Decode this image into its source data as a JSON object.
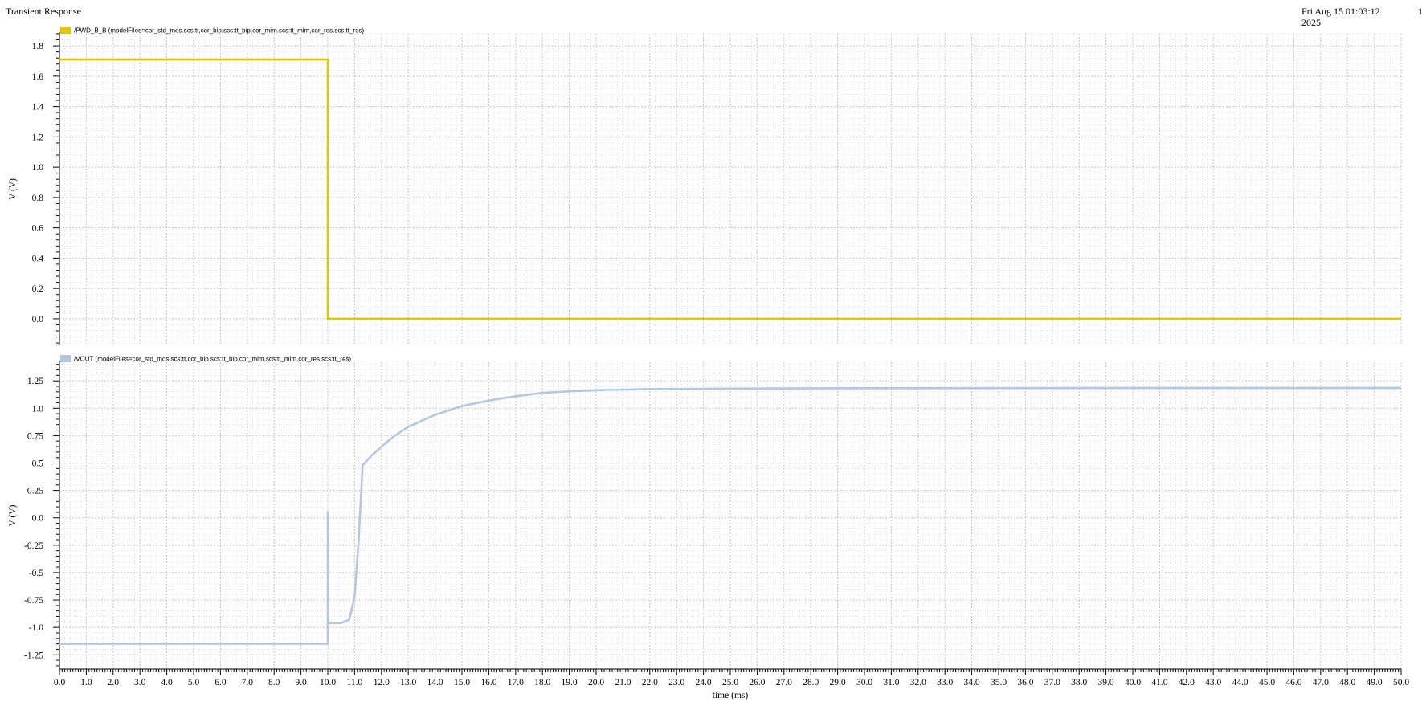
{
  "header": {
    "title": "Transient Response",
    "date_line1": "Fri Aug 15 01:03:12",
    "date_line2": "2025",
    "page": "1"
  },
  "chart_data": [
    {
      "type": "line",
      "legend": "/PWD_B_B (modelFiles=cor_std_mos.scs:tt,cor_bip.scs:tt_bip,cor_mim.scs:tt_mim,cor_res.scs:tt_res)",
      "ylabel": "V (V)",
      "ylim": [
        -0.17,
        1.88
      ],
      "yticks": [
        "0.0",
        "0.2",
        "0.4",
        "0.6",
        "0.8",
        "1.0",
        "1.2",
        "1.4",
        "1.6",
        "1.8"
      ],
      "color": "#dcc800",
      "series": [
        {
          "points": [
            [
              0,
              1.71
            ],
            [
              10,
              1.71
            ],
            [
              10,
              0.0
            ],
            [
              50,
              0.0
            ]
          ]
        }
      ]
    },
    {
      "type": "line",
      "legend": "/VOUT (modelFiles=cor_std_mos.scs:tt,cor_bip.scs:tt_bip,cor_mim.scs:tt_mim,cor_res.scs:tt_res)",
      "ylabel": "V (V)",
      "ylim": [
        -1.38,
        1.42
      ],
      "yticks": [
        "-1.25",
        "-1.0",
        "-0.75",
        "-0.5",
        "-0.25",
        "0.0",
        "0.25",
        "0.5",
        "0.75",
        "1.0",
        "1.25"
      ],
      "color": "#b4c6e0",
      "series": [
        {
          "points": [
            [
              0,
              -1.15
            ],
            [
              10,
              -1.15
            ],
            [
              10,
              0.05
            ],
            [
              10.02,
              -0.96
            ],
            [
              10.5,
              -0.96
            ],
            [
              10.8,
              -0.93
            ],
            [
              11.0,
              -0.72
            ],
            [
              11.15,
              -0.2
            ],
            [
              11.3,
              0.48
            ],
            [
              11.6,
              0.56
            ],
            [
              12.0,
              0.65
            ],
            [
              12.5,
              0.75
            ],
            [
              13,
              0.83
            ],
            [
              14,
              0.94
            ],
            [
              15,
              1.02
            ],
            [
              16,
              1.07
            ],
            [
              17,
              1.11
            ],
            [
              18,
              1.14
            ],
            [
              19,
              1.155
            ],
            [
              20,
              1.165
            ],
            [
              22,
              1.175
            ],
            [
              25,
              1.18
            ],
            [
              30,
              1.183
            ],
            [
              40,
              1.185
            ],
            [
              50,
              1.185
            ]
          ]
        }
      ]
    }
  ],
  "xaxis": {
    "label": "time (ms)",
    "range": [
      0,
      50
    ],
    "ticks": [
      "0.0",
      "1.0",
      "2.0",
      "3.0",
      "4.0",
      "5.0",
      "6.0",
      "7.0",
      "8.0",
      "9.0",
      "10.0",
      "11.0",
      "12.0",
      "13.0",
      "14.0",
      "15.0",
      "16.0",
      "17.0",
      "18.0",
      "19.0",
      "20.0",
      "21.0",
      "22.0",
      "23.0",
      "24.0",
      "25.0",
      "26.0",
      "27.0",
      "28.0",
      "29.0",
      "30.0",
      "31.0",
      "32.0",
      "33.0",
      "34.0",
      "35.0",
      "36.0",
      "37.0",
      "38.0",
      "39.0",
      "40.0",
      "41.0",
      "42.0",
      "43.0",
      "44.0",
      "45.0",
      "46.0",
      "47.0",
      "48.0",
      "49.0",
      "50.0"
    ]
  }
}
